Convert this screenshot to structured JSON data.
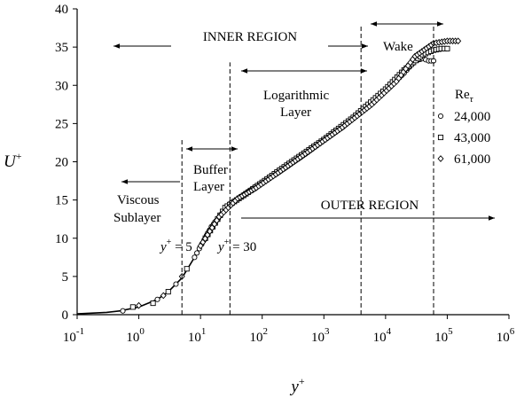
{
  "chart_data": {
    "type": "scatter",
    "xlabel": "y",
    "xlabel_sup": "+",
    "ylabel": "U",
    "ylabel_sup": "+",
    "x_scale": "log",
    "xlim": [
      0.1,
      1000000
    ],
    "ylim": [
      0,
      40
    ],
    "y_ticks": [
      0,
      5,
      10,
      15,
      20,
      25,
      30,
      35,
      40
    ],
    "x_tick_exponents": [
      -1,
      0,
      1,
      2,
      3,
      4,
      5,
      6
    ],
    "x_tick_base": "10",
    "legend_title": "Re",
    "legend_title_sub": "τ",
    "legend_placement": "right",
    "series": [
      {
        "name": "24,000",
        "marker": "circle",
        "x": [
          0.55,
          2.0,
          4.0,
          8,
          15,
          30,
          60,
          100,
          200,
          500,
          1000,
          2000,
          5000,
          10000,
          20000,
          30000,
          40000,
          50000,
          60000
        ],
        "y": [
          0.5,
          2.0,
          4.0,
          7.5,
          11.5,
          14.5,
          16.0,
          17.2,
          18.8,
          21.0,
          22.8,
          24.5,
          27.2,
          29.3,
          31.6,
          33.2,
          33.5,
          33.2,
          33.2
        ]
      },
      {
        "name": "43,000",
        "marker": "square",
        "x": [
          0.8,
          1.7,
          3.0,
          6,
          12,
          25,
          50,
          100,
          300,
          1000,
          3000,
          10000,
          20000,
          40000,
          60000,
          80000,
          100000
        ],
        "y": [
          1.0,
          1.5,
          3.0,
          6.0,
          10.0,
          14.0,
          15.6,
          17.3,
          20.0,
          22.9,
          25.8,
          29.5,
          32.0,
          34.0,
          34.6,
          34.8,
          34.8
        ]
      },
      {
        "name": "61,000",
        "marker": "diamond",
        "x": [
          1.0,
          2.5,
          5,
          10,
          20,
          40,
          80,
          200,
          600,
          2000,
          6000,
          15000,
          30000,
          60000,
          100000,
          150000
        ],
        "y": [
          1.2,
          2.5,
          5.0,
          9.0,
          12.8,
          15.2,
          16.6,
          18.8,
          21.5,
          24.5,
          27.5,
          30.5,
          33.8,
          35.5,
          35.8,
          35.8
        ]
      }
    ],
    "fit_curve": {
      "x": [
        0.1,
        0.3,
        0.5,
        1,
        2,
        3,
        5,
        8,
        12,
        20,
        30,
        50,
        100,
        300,
        1000,
        3000,
        5000
      ],
      "y": [
        0.1,
        0.3,
        0.5,
        1.0,
        2.0,
        3.0,
        4.8,
        7.5,
        10.6,
        13.2,
        14.6,
        16.0,
        17.6,
        20.3,
        23.2,
        25.9,
        27.2
      ]
    },
    "vlines": [
      {
        "x": 5,
        "y_top": 23
      },
      {
        "x": 30,
        "y_top": 33
      },
      {
        "x": 4000,
        "y_top": 38
      },
      {
        "x": 60000,
        "y_top": 38
      }
    ],
    "annotations": {
      "inner_region": "INNER REGION",
      "outer_region": "OUTER REGION",
      "wake": "Wake",
      "log_layer_1": "Logarithmic",
      "log_layer_2": "Layer",
      "buffer_1": "Buffer",
      "buffer_2": "Layer",
      "viscous_1": "Viscous",
      "viscous_2": "Sublayer",
      "yplus_5_eq": " = 5",
      "yplus_30_eq": " = 30"
    }
  }
}
